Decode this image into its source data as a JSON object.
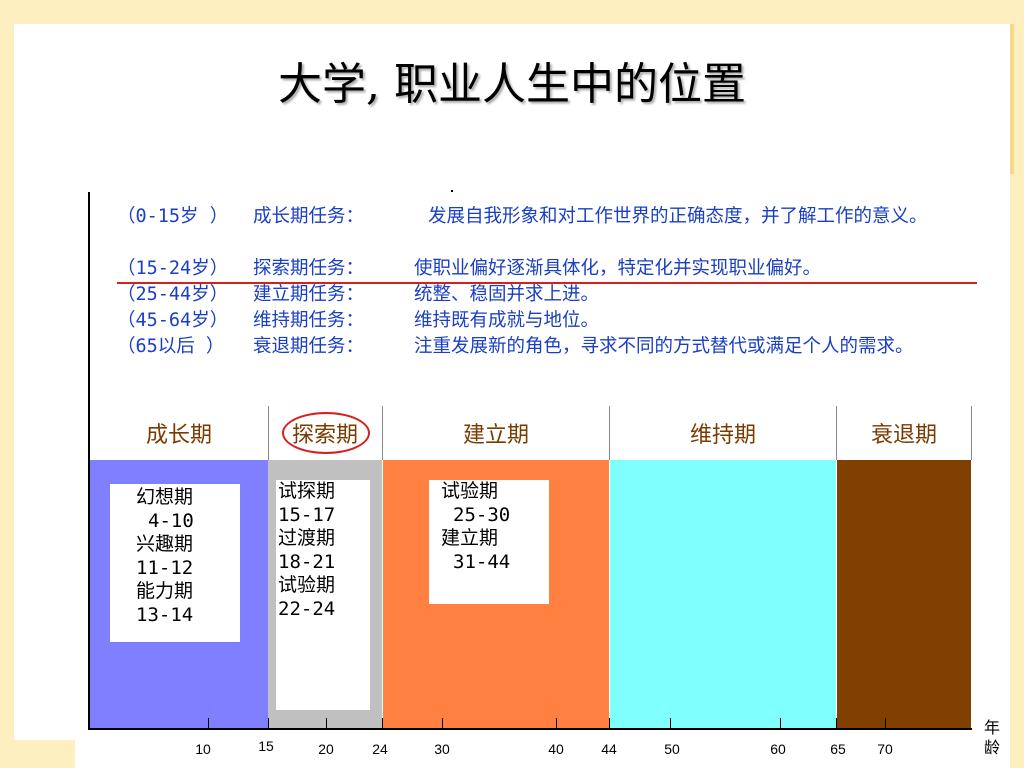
{
  "title": "大学, 职业人生中的位置",
  "tasks": [
    {
      "age": "（0-15岁 ）",
      "name": "成长期任务：",
      "desc": "发展自我形象和对工作世界的正确态度，并了解工作的意义。"
    },
    {
      "age": "（15-24岁）",
      "name": "探索期任务：",
      "desc": "使职业偏好逐渐具体化，特定化并实现职业偏好。"
    },
    {
      "age": "（25-44岁）",
      "name": "建立期任务：",
      "desc": "统整、稳固并求上进。"
    },
    {
      "age": "（45-64岁）",
      "name": "维持期任务：",
      "desc": "维持既有成就与地位。"
    },
    {
      "age": "（65以后 ）",
      "name": "衰退期任务：",
      "desc": "注重发展新的角色，寻求不同的方式替代或满足个人的需求。"
    }
  ],
  "stages": [
    {
      "label": "成长期",
      "color": "#7f7fff"
    },
    {
      "label": "探索期",
      "color": "#c0c0c0"
    },
    {
      "label": "建立期",
      "color": "#ff8040"
    },
    {
      "label": "维持期",
      "color": "#80ffff"
    },
    {
      "label": "衰退期",
      "color": "#804000"
    }
  ],
  "substages": {
    "growth": [
      "幻想期",
      "4-10",
      "兴趣期",
      "11-12",
      "能力期",
      "13-14"
    ],
    "explore": [
      "试探期",
      "15-17",
      "过渡期",
      "18-21",
      "试验期",
      "22-24"
    ],
    "establish": [
      "试验期",
      "25-30",
      "建立期",
      "31-44"
    ]
  },
  "axis": {
    "ticks": [
      "10",
      "15",
      "20",
      "24",
      "30",
      "40",
      "44",
      "50",
      "60",
      "65",
      "70"
    ],
    "label": "年龄"
  },
  "colors": {
    "task_text": "#1a3fc4",
    "highlight": "#d42020",
    "stage_label": "#7a3a00"
  }
}
